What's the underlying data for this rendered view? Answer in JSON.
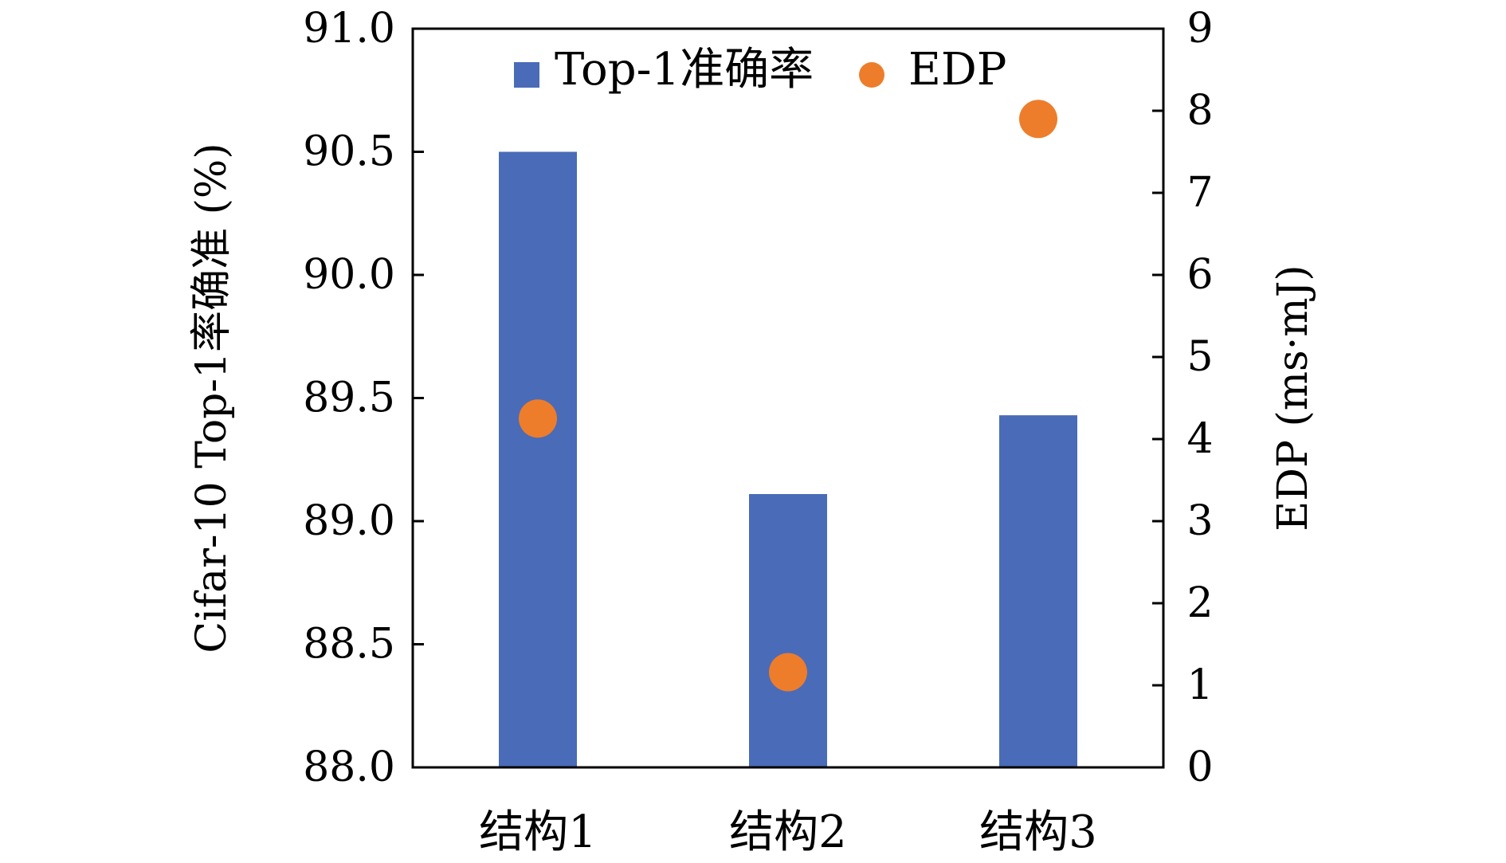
{
  "chart_data": {
    "type": "bar",
    "categories": [
      "结构1",
      "结构2",
      "结构3"
    ],
    "series": [
      {
        "name": "Top-1准确率",
        "kind": "bar",
        "axis": "left",
        "values": [
          90.5,
          89.11,
          89.43
        ],
        "color": "#4a6bb8"
      },
      {
        "name": "EDP",
        "kind": "scatter",
        "axis": "right",
        "values": [
          4.25,
          1.16,
          7.9
        ],
        "color": "#ed7d2b"
      }
    ],
    "ylabel": "Cifar-10 Top-1率确准 (%)",
    "y2label": "EDP (ms·mJ)",
    "ylim": [
      88.0,
      91.0
    ],
    "yticks": [
      "88.0",
      "88.5",
      "89.0",
      "89.5",
      "90.0",
      "90.5",
      "91.0"
    ],
    "y2lim": [
      0,
      9
    ],
    "y2ticks": [
      "0",
      "1",
      "2",
      "3",
      "4",
      "5",
      "6",
      "7",
      "8",
      "9"
    ],
    "legend_position": "top-center",
    "grid": false
  }
}
